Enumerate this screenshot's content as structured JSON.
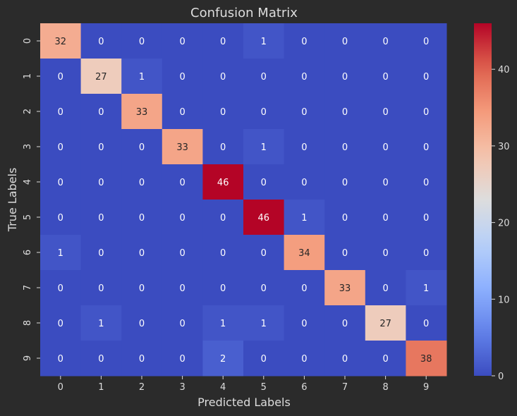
{
  "chart_data": {
    "type": "heatmap",
    "title": "Confusion Matrix",
    "xlabel": "Predicted Labels",
    "ylabel": "True Labels",
    "x_categories": [
      "0",
      "1",
      "2",
      "3",
      "4",
      "5",
      "6",
      "7",
      "8",
      "9"
    ],
    "y_categories": [
      "0",
      "1",
      "2",
      "3",
      "4",
      "5",
      "6",
      "7",
      "8",
      "9"
    ],
    "matrix": [
      [
        32,
        0,
        0,
        0,
        0,
        1,
        0,
        0,
        0,
        0
      ],
      [
        0,
        27,
        1,
        0,
        0,
        0,
        0,
        0,
        0,
        0
      ],
      [
        0,
        0,
        33,
        0,
        0,
        0,
        0,
        0,
        0,
        0
      ],
      [
        0,
        0,
        0,
        33,
        0,
        1,
        0,
        0,
        0,
        0
      ],
      [
        0,
        0,
        0,
        0,
        46,
        0,
        0,
        0,
        0,
        0
      ],
      [
        0,
        0,
        0,
        0,
        0,
        46,
        1,
        0,
        0,
        0
      ],
      [
        1,
        0,
        0,
        0,
        0,
        0,
        34,
        0,
        0,
        0
      ],
      [
        0,
        0,
        0,
        0,
        0,
        0,
        0,
        33,
        0,
        1
      ],
      [
        0,
        1,
        0,
        0,
        1,
        1,
        0,
        0,
        27,
        0
      ],
      [
        0,
        0,
        0,
        0,
        2,
        0,
        0,
        0,
        0,
        38
      ]
    ],
    "colormap": "coolwarm",
    "vmin": 0,
    "vmax": 46,
    "colorbar_ticks": [
      "0",
      "10",
      "20",
      "30",
      "40"
    ],
    "colorbar_tick_values": [
      0,
      10,
      20,
      30,
      40
    ],
    "colors": {
      "background": "#2b2b2b",
      "text": "#dddddd",
      "cool": "#3b4cc0",
      "neutral": "#dddddd",
      "warm": "#b40426"
    }
  }
}
